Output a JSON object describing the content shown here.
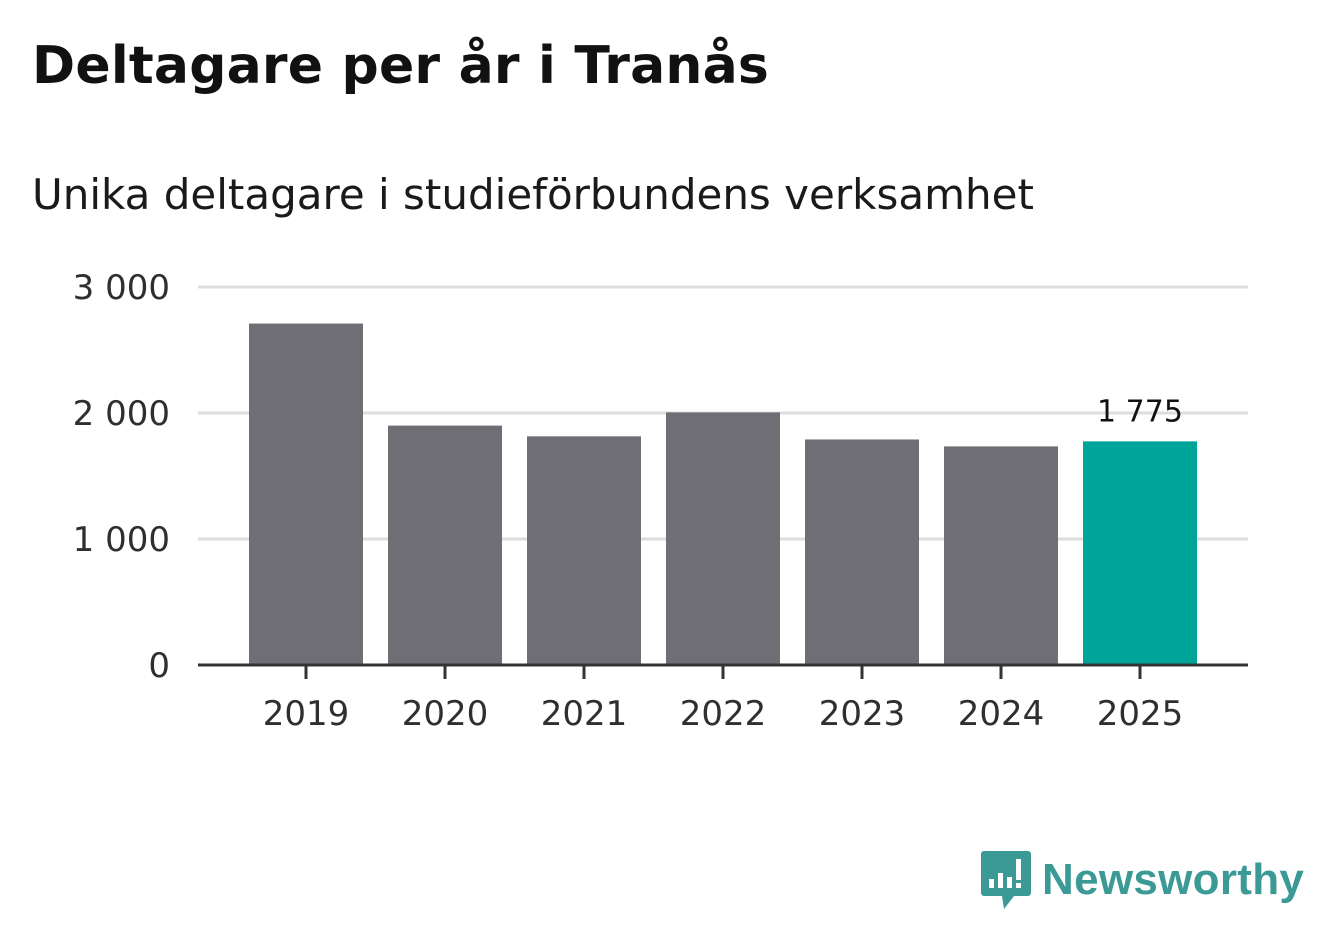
{
  "title": "Deltagare per år i Tranås",
  "subtitle": "Unika deltagare i studieförbundens verksamhet",
  "brand": {
    "name": "Newsworthy",
    "icon": "newsworthy-logo-icon",
    "color": "#3b9a96"
  },
  "colors": {
    "bar": "#6f6e75",
    "highlight": "#00a59a",
    "grid": "#dddddd",
    "axis": "#333333"
  },
  "chart_data": {
    "type": "bar",
    "title": "Deltagare per år i Tranås",
    "subtitle": "Unika deltagare i studieförbundens verksamhet",
    "categories": [
      "2019",
      "2020",
      "2021",
      "2022",
      "2023",
      "2024",
      "2025"
    ],
    "values": [
      2710,
      1900,
      1815,
      2005,
      1790,
      1735,
      1775
    ],
    "highlight_index": 6,
    "data_labels": [
      null,
      null,
      null,
      null,
      null,
      null,
      "1 775"
    ],
    "ylim": [
      0,
      3000
    ],
    "yticks": [
      0,
      1000,
      2000,
      3000
    ],
    "ytick_labels": [
      "0",
      "1 000",
      "2 000",
      "3 000"
    ],
    "xlabel": "",
    "ylabel": "",
    "grid": true
  }
}
